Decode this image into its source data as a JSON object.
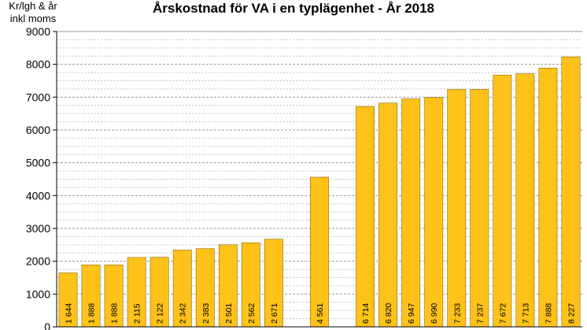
{
  "chart_data": {
    "type": "bar",
    "title": "Årskostnad för VA i en typlägenhet - År 2018",
    "ylabel": "Kr/lgh & år inkl moms",
    "xlabel": "",
    "ylim": [
      0,
      9000
    ],
    "yticks": [
      0,
      1000,
      2000,
      3000,
      4000,
      5000,
      6000,
      7000,
      8000,
      9000
    ],
    "grid": true,
    "bar_color": "#FFC21A",
    "bar_edge_color": "#8a6a00",
    "values": [
      1644,
      1888,
      1888,
      2115,
      2122,
      2342,
      2383,
      2501,
      2562,
      2671,
      null,
      4561,
      null,
      6714,
      6820,
      6947,
      6990,
      7233,
      7237,
      7672,
      7713,
      7888,
      8227
    ],
    "data_labels": [
      "1 644",
      "1 888",
      "1 888",
      "2 115",
      "2 122",
      "2 342",
      "2 383",
      "2 501",
      "2 562",
      "2 671",
      "",
      "4 561",
      "",
      "6 714",
      "6 820",
      "6 947",
      "6 990",
      "7 233",
      "7 237",
      "7 672",
      "7 713",
      "7 888",
      "8 227"
    ]
  }
}
